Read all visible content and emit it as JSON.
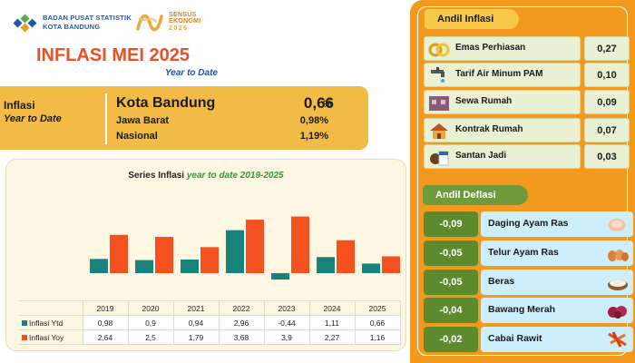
{
  "header": {
    "bps_line1": "BADAN PUSAT STATISTIK",
    "bps_line2": "KOTA BANDUNG",
    "se_line1": "SENSUS",
    "se_line2": "EKONOMI",
    "se_line3": "2026",
    "title": "INFLASI MEI 2025",
    "subtitle": "Year to Date"
  },
  "summary": {
    "label1": "Inflasi",
    "label2": "Year to Date",
    "regions": [
      {
        "name": "Kota Bandung",
        "value": "0,66",
        "unit": "%"
      },
      {
        "name": "Jawa Barat",
        "value": "0,98%"
      },
      {
        "name": "Nasional",
        "value": "1,19%"
      }
    ]
  },
  "chart_data": {
    "type": "bar",
    "title": "Series Inflasi ",
    "title_highlight": "year to date 2019-2025",
    "categories": [
      "2019",
      "2020",
      "2021",
      "2022",
      "2023",
      "2024",
      "2025"
    ],
    "series": [
      {
        "name": "Inflasi Ytd",
        "color": "#17837b",
        "values": [
          0.98,
          0.9,
          0.94,
          2.96,
          -0.44,
          1.11,
          0.66
        ],
        "labels": [
          "0,98",
          "0,9",
          "0,94",
          "2,96",
          "-0,44",
          "1,11",
          "0,66"
        ]
      },
      {
        "name": "Inflasi Yoy",
        "color": "#f4511e",
        "values": [
          2.64,
          2.5,
          1.79,
          3.68,
          3.9,
          2.27,
          1.16
        ],
        "labels": [
          "2,64",
          "2,5",
          "1,79",
          "3,68",
          "3,9",
          "2,27",
          "1,16"
        ]
      }
    ],
    "ylim": [
      -0.6,
      4.0
    ],
    "grid": false,
    "legend": "table"
  },
  "andil_inflasi": {
    "title": "Andil Inflasi",
    "items": [
      {
        "name": "Emas Perhiasan",
        "value": "0,27",
        "icon": "gold-jewelry-icon"
      },
      {
        "name": "Tarif Air Minum PAM",
        "value": "0,10",
        "icon": "water-tap-icon"
      },
      {
        "name": "Sewa Rumah",
        "value": "0,09",
        "icon": "rental-house-icon"
      },
      {
        "name": "Kontrak Rumah",
        "value": "0,07",
        "icon": "house-icon"
      },
      {
        "name": "Santan Jadi",
        "value": "0,03",
        "icon": "coconut-milk-icon"
      }
    ]
  },
  "andil_deflasi": {
    "title": "Andil Deflasi",
    "items": [
      {
        "name": "Daging Ayam Ras",
        "value": "-0,09",
        "icon": "chicken-meat-icon"
      },
      {
        "name": "Telur Ayam Ras",
        "value": "-0,05",
        "icon": "eggs-icon"
      },
      {
        "name": "Beras",
        "value": "-0,05",
        "icon": "rice-icon"
      },
      {
        "name": "Bawang Merah",
        "value": "-0,04",
        "icon": "shallot-icon"
      },
      {
        "name": "Cabai Rawit",
        "value": "-0,02",
        "icon": "chili-icon"
      }
    ]
  },
  "colors": {
    "accent_orange": "#f39a1e",
    "title_red": "#ee4f25",
    "summary_yellow": "#f2bb46",
    "deflasi_green": "#5e8a2e",
    "deflasi_item_blue": "#cdeffb"
  }
}
